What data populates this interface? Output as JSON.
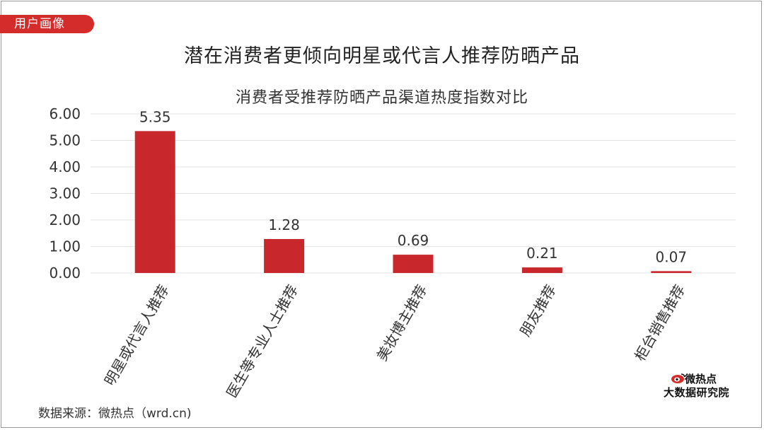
{
  "header": {
    "tag": "用户画像",
    "title": "潜在消费者更倾向明星或代言人推荐防晒产品"
  },
  "chart_data": {
    "type": "bar",
    "title": "消费者受推荐防晒产品渠道热度指数对比",
    "categories": [
      "明星或代言人推荐",
      "医生等专业人士推荐",
      "美妆博主推荐",
      "朋友推荐",
      "柜台销售推荐"
    ],
    "values": [
      5.35,
      1.28,
      0.69,
      0.21,
      0.07
    ],
    "value_labels": [
      "5.35",
      "1.28",
      "0.69",
      "0.21",
      "0.07"
    ],
    "ylim": [
      0,
      6
    ],
    "yticks": [
      "0.00",
      "1.00",
      "2.00",
      "3.00",
      "4.00",
      "5.00",
      "6.00"
    ],
    "xlabel": "",
    "ylabel": "",
    "grid": true,
    "bar_color": "#c8282b"
  },
  "footer": {
    "source": "数据来源：微热点（wrd.cn)",
    "logo_line1": "微热点",
    "logo_line2": "大数据研究院"
  },
  "colors": {
    "accent": "#d42b2b",
    "grid": "#e3e3e3"
  }
}
